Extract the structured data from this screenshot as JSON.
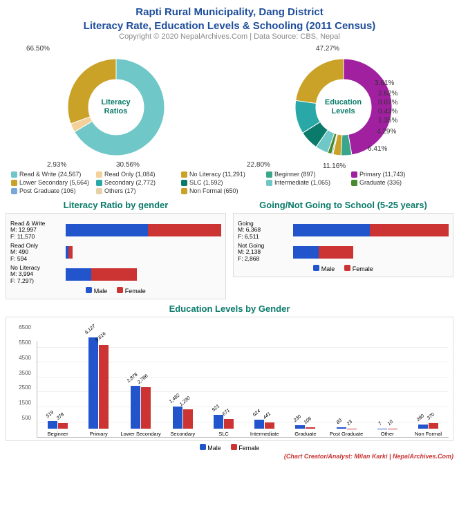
{
  "title_line1": "Rapti Rural Municipality, Dang District",
  "title_line2": "Literacy Rate, Education Levels & Schooling (2011 Census)",
  "copyright": "Copyright © 2020 NepalArchives.Com | Data Source: CBS, Nepal",
  "credit": "(Chart Creator/Analyst: Milan Karki | NepalArchives.Com)",
  "colors": {
    "male": "#2255cc",
    "female": "#cc3333",
    "title": "#1e4d9b",
    "section": "#0a7a6a"
  },
  "donut1": {
    "center": "Literacy\nRatios",
    "slices": [
      {
        "label": "Read & Write (24,567)",
        "pct": 66.5,
        "color": "#6fc7c7",
        "callout": "66.50%"
      },
      {
        "label": "Read Only (1,084)",
        "pct": 2.93,
        "color": "#f4d19b",
        "callout": "2.93%"
      },
      {
        "label": "No Literacy (11,291)",
        "pct": 30.56,
        "color": "#c9a227",
        "callout": "30.56%"
      }
    ]
  },
  "donut2": {
    "center": "Education\nLevels",
    "slices": [
      {
        "label": "Primary (11,743)",
        "pct": 47.27,
        "color": "#a020a0",
        "callout": "47.27%"
      },
      {
        "label": "Beginner (897)",
        "pct": 3.61,
        "color": "#3aa68a",
        "callout": "3.61%"
      },
      {
        "label": "Non Formal (650)",
        "pct": 2.62,
        "color": "#c9a227",
        "callout": "2.62%"
      },
      {
        "label": "Others (17)",
        "pct": 0.07,
        "color": "#e6d2a8",
        "callout": "0.07%"
      },
      {
        "label": "Post Graduate (106)",
        "pct": 0.43,
        "color": "#7aa8d6",
        "callout": "0.43%"
      },
      {
        "label": "Graduate (336)",
        "pct": 1.35,
        "color": "#4a8a2e",
        "callout": "1.35%"
      },
      {
        "label": "Intermediate (1,065)",
        "pct": 4.29,
        "color": "#6fc7c7",
        "callout": "4.29%"
      },
      {
        "label": "SLC (1,592)",
        "pct": 6.41,
        "color": "#0a7a6a",
        "callout": "6.41%"
      },
      {
        "label": "Secondary (2,772)",
        "pct": 11.16,
        "color": "#2aa8a8",
        "callout": "11.16%"
      },
      {
        "label": "Lower Secondary (5,664)",
        "pct": 22.8,
        "color": "#c9a227",
        "callout": "22.80%"
      }
    ]
  },
  "legend_rows": [
    [
      {
        "text": "Read & Write (24,567)",
        "color": "#6fc7c7"
      },
      {
        "text": "Read Only (1,084)",
        "color": "#f4d19b"
      },
      {
        "text": "No Literacy (11,291)",
        "color": "#c9a227"
      },
      {
        "text": "Beginner (897)",
        "color": "#3aa68a"
      }
    ],
    [
      {
        "text": "Primary (11,743)",
        "color": "#a020a0"
      },
      {
        "text": "Lower Secondary (5,664)",
        "color": "#c9a227"
      },
      {
        "text": "Secondary (2,772)",
        "color": "#2aa8a8"
      },
      {
        "text": "SLC (1,592)",
        "color": "#0a7a6a"
      }
    ],
    [
      {
        "text": "Intermediate (1,065)",
        "color": "#6fc7c7"
      },
      {
        "text": "Graduate (336)",
        "color": "#4a8a2e"
      },
      {
        "text": "Post Graduate (106)",
        "color": "#7aa8d6"
      },
      {
        "text": "Others (17)",
        "color": "#e6d2a8"
      }
    ],
    [
      {
        "text": "Non Formal (650)",
        "color": "#c9a227"
      }
    ]
  ],
  "hbar1": {
    "title": "Literacy Ratio by gender",
    "max": 24567,
    "rows": [
      {
        "name": "Read & Write",
        "m": 12997,
        "f": 11570
      },
      {
        "name": "Read Only",
        "m": 490,
        "f": 594
      },
      {
        "name": "No Literacy",
        "m": 3994,
        "f": 7297
      }
    ]
  },
  "hbar2": {
    "title": "Going/Not Going to School (5-25 years)",
    "max": 12879,
    "rows": [
      {
        "name": "Going",
        "m": 6368,
        "f": 6511
      },
      {
        "name": "Not Going",
        "m": 2138,
        "f": 2868
      }
    ]
  },
  "gender_legend": {
    "male": "Male",
    "female": "Female"
  },
  "vbar": {
    "title": "Education Levels by Gender",
    "ymax": 6500,
    "ytick": 1000,
    "categories": [
      {
        "name": "Beginner",
        "m": 519,
        "f": 378
      },
      {
        "name": "Primary",
        "m": 6127,
        "f": 5616
      },
      {
        "name": "Lower Secondary",
        "m": 2878,
        "f": 2786
      },
      {
        "name": "Secondary",
        "m": 1482,
        "f": 1290
      },
      {
        "name": "SLC",
        "m": 921,
        "f": 671
      },
      {
        "name": "Intermediate",
        "m": 624,
        "f": 441
      },
      {
        "name": "Graduate",
        "m": 230,
        "f": 106
      },
      {
        "name": "Post Graduate",
        "m": 83,
        "f": 23
      },
      {
        "name": "Other",
        "m": 7,
        "f": 10
      },
      {
        "name": "Non Formal",
        "m": 280,
        "f": 370
      }
    ]
  }
}
